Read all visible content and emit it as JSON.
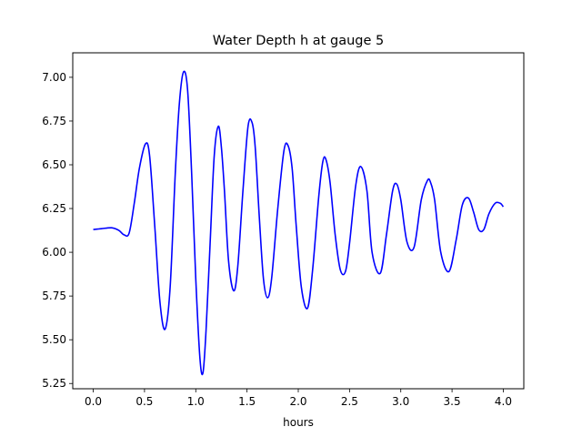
{
  "chart_data": {
    "type": "line",
    "title": "Water Depth h at gauge 5",
    "xlabel": "hours",
    "ylabel": "",
    "xlim": [
      -0.2,
      4.2
    ],
    "ylim": [
      5.22,
      7.14
    ],
    "xticks": [
      0.0,
      0.5,
      1.0,
      1.5,
      2.0,
      2.5,
      3.0,
      3.5,
      4.0
    ],
    "xtick_labels": [
      "0.0",
      "0.5",
      "1.0",
      "1.5",
      "2.0",
      "2.5",
      "3.0",
      "3.5",
      "4.0"
    ],
    "yticks": [
      5.25,
      5.5,
      5.75,
      6.0,
      6.25,
      6.5,
      6.75,
      7.0
    ],
    "ytick_labels": [
      "5.25",
      "5.50",
      "5.75",
      "6.00",
      "6.25",
      "6.50",
      "6.75",
      "7.00"
    ],
    "grid": false,
    "legend": "none",
    "series": [
      {
        "color": "#0000ff",
        "x": [
          0.0,
          0.08,
          0.18,
          0.25,
          0.3,
          0.35,
          0.4,
          0.45,
          0.51,
          0.55,
          0.6,
          0.65,
          0.7,
          0.75,
          0.8,
          0.84,
          0.88,
          0.92,
          0.96,
          1.0,
          1.04,
          1.07,
          1.1,
          1.14,
          1.18,
          1.22,
          1.25,
          1.28,
          1.32,
          1.37,
          1.41,
          1.46,
          1.51,
          1.55,
          1.58,
          1.62,
          1.66,
          1.7,
          1.74,
          1.8,
          1.86,
          1.9,
          1.94,
          1.98,
          2.03,
          2.09,
          2.14,
          2.2,
          2.24,
          2.27,
          2.31,
          2.36,
          2.41,
          2.46,
          2.5,
          2.56,
          2.61,
          2.67,
          2.72,
          2.8,
          2.86,
          2.92,
          2.96,
          3.0,
          3.06,
          3.13,
          3.2,
          3.26,
          3.29,
          3.33,
          3.39,
          3.47,
          3.54,
          3.6,
          3.66,
          3.71,
          3.76,
          3.81,
          3.86,
          3.92,
          3.97,
          4.0
        ],
        "y": [
          6.13,
          6.135,
          6.14,
          6.125,
          6.1,
          6.11,
          6.28,
          6.48,
          6.62,
          6.55,
          6.15,
          5.72,
          5.56,
          5.8,
          6.45,
          6.85,
          7.03,
          6.93,
          6.45,
          5.85,
          5.4,
          5.31,
          5.55,
          6.05,
          6.55,
          6.72,
          6.6,
          6.35,
          5.95,
          5.78,
          5.92,
          6.35,
          6.72,
          6.74,
          6.6,
          6.2,
          5.85,
          5.74,
          5.85,
          6.25,
          6.58,
          6.61,
          6.48,
          6.15,
          5.8,
          5.68,
          5.9,
          6.32,
          6.52,
          6.53,
          6.4,
          6.1,
          5.9,
          5.89,
          6.05,
          6.38,
          6.49,
          6.35,
          6.0,
          5.88,
          6.1,
          6.35,
          6.39,
          6.3,
          6.06,
          6.03,
          6.3,
          6.41,
          6.4,
          6.3,
          6.0,
          5.89,
          6.07,
          6.27,
          6.31,
          6.23,
          6.13,
          6.13,
          6.22,
          6.28,
          6.28,
          6.26
        ]
      }
    ]
  }
}
